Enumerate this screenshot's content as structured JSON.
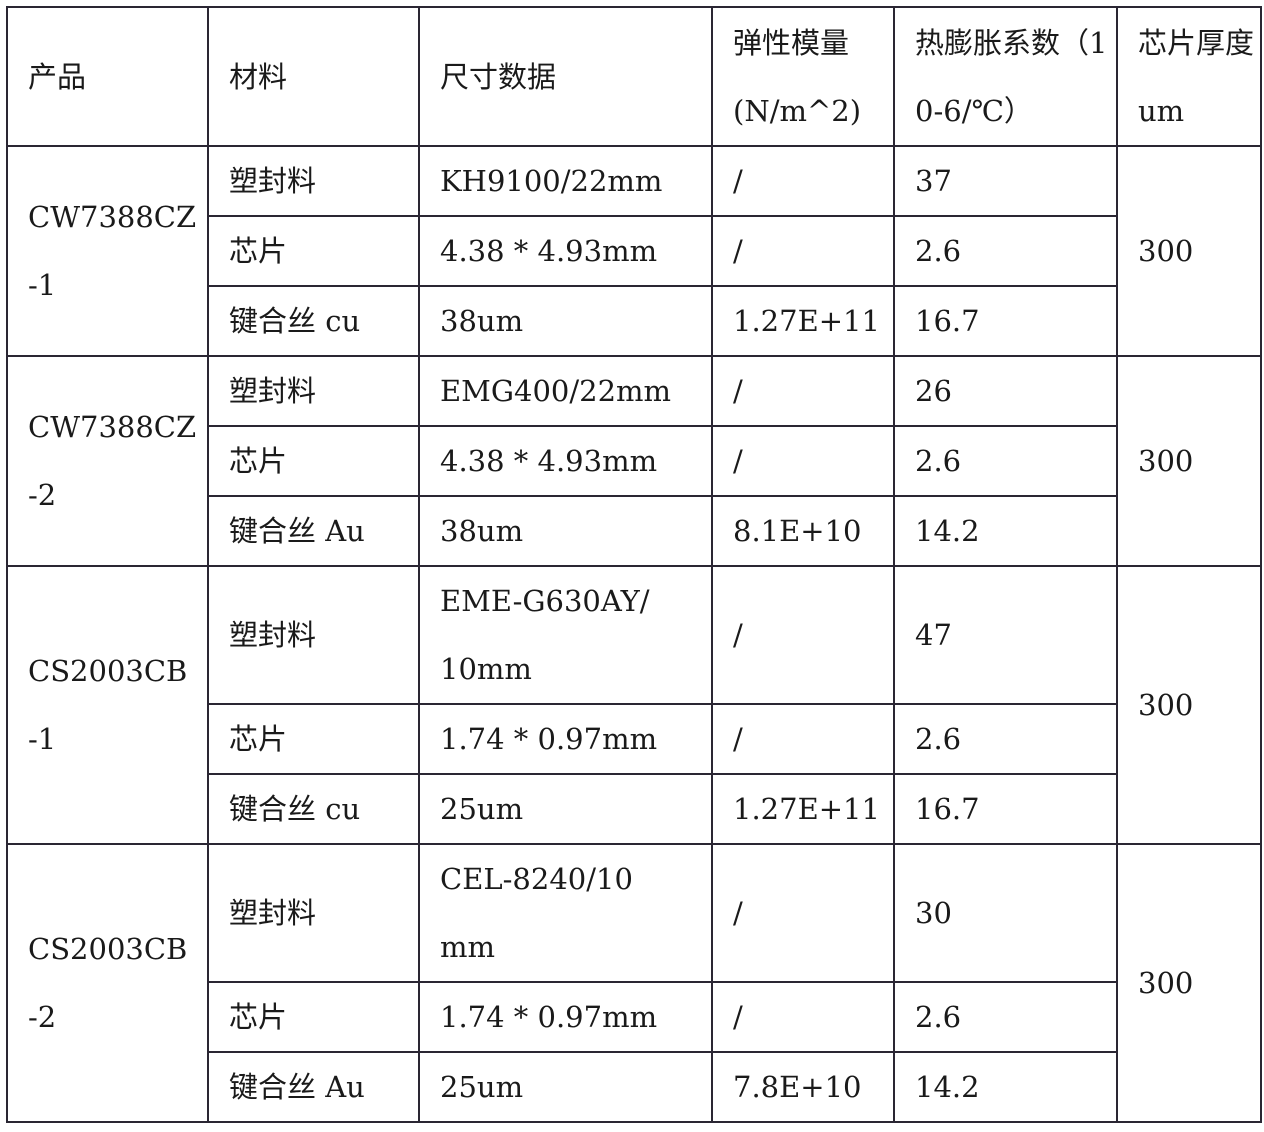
{
  "table": {
    "headers": [
      "产品",
      "材料",
      "尺寸数据",
      "弹性模量(N/m^2)",
      "热膨胀系数（10-6/℃）",
      "芯片厚度 um"
    ],
    "groups": [
      {
        "product": "CW7388CZ-1",
        "thickness": "300",
        "rows": [
          {
            "material": "塑封料",
            "size": "KH9100/22mm",
            "modulus": "/",
            "cte": "37"
          },
          {
            "material": "芯片",
            "size": "4.38 * 4.93mm",
            "modulus": "/",
            "cte": "2.6"
          },
          {
            "material": "键合丝 cu",
            "size": "38um",
            "modulus": "1.27E+11",
            "cte": "16.7"
          }
        ]
      },
      {
        "product": "CW7388CZ-2",
        "thickness": "300",
        "rows": [
          {
            "material": "塑封料",
            "size": "EMG400/22mm",
            "modulus": "/",
            "cte": "26"
          },
          {
            "material": "芯片",
            "size": "4.38 * 4.93mm",
            "modulus": "/",
            "cte": "2.6"
          },
          {
            "material": "键合丝 Au",
            "size": "38um",
            "modulus": "8.1E+10",
            "cte": "14.2"
          }
        ]
      },
      {
        "product": "CS2003CB-1",
        "thickness": "300",
        "rows": [
          {
            "material": "塑封料",
            "size": "EME-G630AY/10mm",
            "modulus": "/",
            "cte": "47"
          },
          {
            "material": "芯片",
            "size": "1.74 * 0.97mm",
            "modulus": "/",
            "cte": "2.6"
          },
          {
            "material": "键合丝 cu",
            "size": "25um",
            "modulus": "1.27E+11",
            "cte": "16.7"
          }
        ]
      },
      {
        "product": "CS2003CB-2",
        "thickness": "300",
        "rows": [
          {
            "material": "塑封料",
            "size": "CEL-8240/10mm",
            "modulus": "/",
            "cte": "30"
          },
          {
            "material": "芯片",
            "size": "1.74 * 0.97mm",
            "modulus": "/",
            "cte": "2.6"
          },
          {
            "material": "键合丝 Au",
            "size": "25um",
            "modulus": "7.8E+10",
            "cte": "14.2"
          }
        ]
      }
    ]
  }
}
